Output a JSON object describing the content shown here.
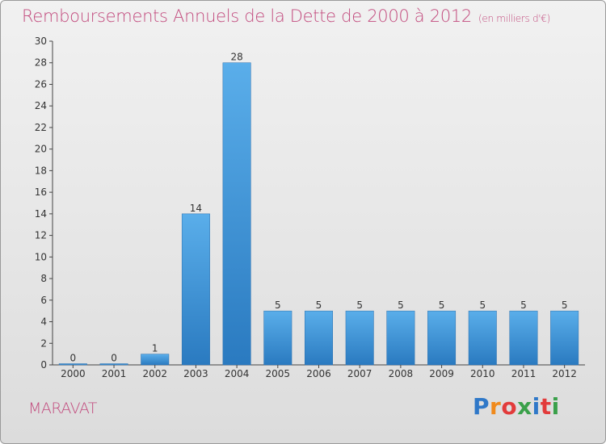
{
  "title": "Remboursements Annuels de la Dette de 2000 à 2012",
  "unit": "(en milliers d'€)",
  "commune": "MARAVAT",
  "logo": {
    "text": "Proxiti",
    "colors": [
      "#2f78c8",
      "#f08a1c",
      "#e23b3b",
      "#3aa04a",
      "#2f78c8",
      "#e23b3b",
      "#3aa04a"
    ]
  },
  "colors": {
    "accent": "#c24a7d",
    "bar_top": "#5aaeea",
    "bar_bottom": "#2a7ac0"
  },
  "chart_data": {
    "type": "bar",
    "title": "Remboursements Annuels de la Dette de 2000 à 2012",
    "categories": [
      "2000",
      "2001",
      "2002",
      "2003",
      "2004",
      "2005",
      "2006",
      "2007",
      "2008",
      "2009",
      "2010",
      "2011",
      "2012"
    ],
    "values": [
      0,
      0,
      1,
      14,
      28,
      5,
      5,
      5,
      5,
      5,
      5,
      5,
      5
    ],
    "ylim": [
      0,
      30
    ],
    "yticks": [
      0,
      2,
      4,
      6,
      8,
      10,
      12,
      14,
      16,
      18,
      20,
      22,
      24,
      26,
      28,
      30
    ],
    "grid": false,
    "legend": "none"
  }
}
